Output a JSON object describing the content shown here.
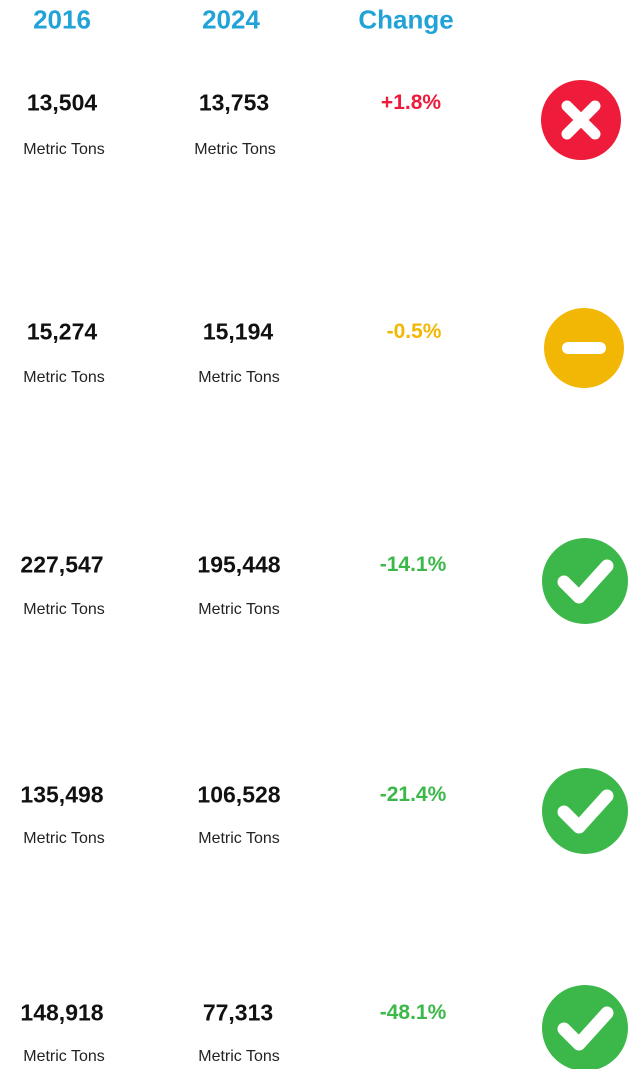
{
  "header": {
    "columns": [
      "2016",
      "2024",
      "Change"
    ]
  },
  "rows": [
    {
      "values": [
        "13,504",
        "13,753"
      ],
      "units": [
        "Metric Tons",
        "Metric Tons"
      ],
      "change": "+1.8%"
    },
    {
      "values": [
        "15,274",
        "15,194"
      ],
      "units": [
        "Metric Tons",
        "Metric Tons"
      ],
      "change": "-0.5%"
    },
    {
      "values": [
        "227,547",
        "195,448"
      ],
      "units": [
        "Metric Tons",
        "Metric Tons"
      ],
      "change": "-14.1%"
    },
    {
      "values": [
        "135,498",
        "106,528"
      ],
      "units": [
        "Metric Tons",
        "Metric Tons"
      ],
      "change": "-21.4%"
    },
    {
      "values": [
        "148,918",
        "77,313"
      ],
      "units": [
        "Metric Tons",
        "Metric Tons"
      ],
      "change": "-48.1%"
    }
  ]
}
